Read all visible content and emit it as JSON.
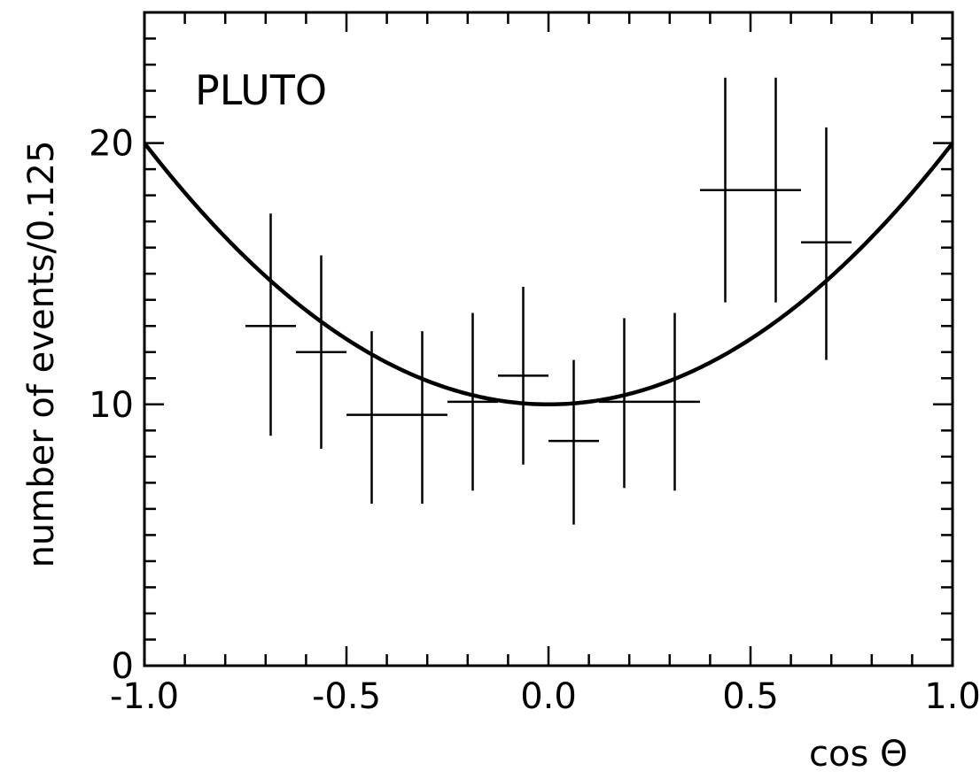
{
  "chart_data": {
    "type": "scatter",
    "title": "",
    "annotation": "PLUTO",
    "xlabel": "cos Θ",
    "ylabel": "number of events/0.125",
    "xlim": [
      -1.0,
      1.0
    ],
    "ylim": [
      0,
      25
    ],
    "x_tick_labels": [
      "-1.0",
      "-0.5",
      "0.0",
      "0.5",
      "1.0"
    ],
    "y_tick_labels": [
      "0",
      "10",
      "20"
    ],
    "grid": false,
    "legend": "none",
    "series": [
      {
        "type": "errorbar",
        "points": [
          {
            "x": -0.6875,
            "y": 13.0,
            "ylo": 8.8,
            "yhi": 17.3
          },
          {
            "x": -0.5625,
            "y": 12.0,
            "ylo": 8.3,
            "yhi": 15.7
          },
          {
            "x": -0.4375,
            "y": 9.6,
            "ylo": 6.2,
            "yhi": 12.8
          },
          {
            "x": -0.3125,
            "y": 9.6,
            "ylo": 6.2,
            "yhi": 12.8
          },
          {
            "x": -0.1875,
            "y": 10.1,
            "ylo": 6.7,
            "yhi": 13.5
          },
          {
            "x": -0.0625,
            "y": 11.1,
            "ylo": 7.7,
            "yhi": 14.5
          },
          {
            "x": 0.0625,
            "y": 8.6,
            "ylo": 5.4,
            "yhi": 11.7
          },
          {
            "x": 0.1875,
            "y": 10.1,
            "ylo": 6.8,
            "yhi": 13.3
          },
          {
            "x": 0.3125,
            "y": 10.1,
            "ylo": 6.7,
            "yhi": 13.5
          },
          {
            "x": 0.4375,
            "y": 18.2,
            "ylo": 13.9,
            "yhi": 22.5
          },
          {
            "x": 0.5625,
            "y": 18.2,
            "ylo": 13.9,
            "yhi": 22.5
          },
          {
            "x": 0.6875,
            "y": 16.2,
            "ylo": 11.7,
            "yhi": 20.6
          }
        ]
      },
      {
        "type": "line",
        "function": "10*(1+cos^2 Θ)",
        "x": [
          -1.0,
          -0.9,
          -0.8,
          -0.7,
          -0.6,
          -0.5,
          -0.4,
          -0.3,
          -0.2,
          -0.1,
          0.0,
          0.1,
          0.2,
          0.3,
          0.4,
          0.5,
          0.6,
          0.7,
          0.8,
          0.9,
          1.0
        ],
        "y": [
          20.0,
          18.1,
          16.4,
          14.9,
          13.6,
          12.5,
          11.6,
          10.9,
          10.4,
          10.1,
          10.0,
          10.1,
          10.4,
          10.9,
          11.6,
          12.5,
          13.6,
          14.9,
          16.4,
          18.1,
          20.0
        ]
      }
    ]
  }
}
